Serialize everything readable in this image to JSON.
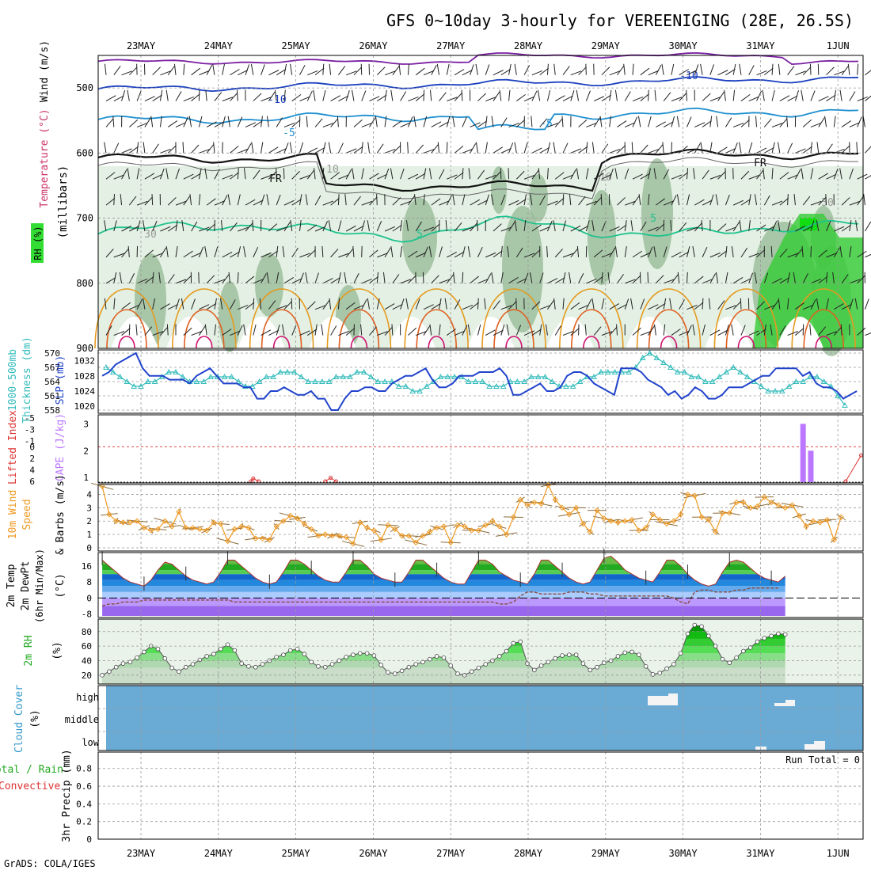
{
  "title": "GFS 0~10day 3-hourly for VEREENIGING (28E, 26.5S)",
  "footer": "GrADS: COLA/IGES",
  "dates": [
    "23MAY",
    "24MAY",
    "25MAY",
    "26MAY",
    "27MAY",
    "28MAY",
    "29MAY",
    "30MAY",
    "31MAY",
    "1JUN"
  ],
  "colors": {
    "grid": "#999999",
    "rh_light": "#e3f0e3",
    "rh_mid": "#b9d6b9",
    "rh_dark": "#8fb38f",
    "rh_green": "#33cc33",
    "thickness": "#33bbbb",
    "slp": "#2244cc",
    "cape": "#bb77ff",
    "lifted": "#dd3333",
    "wind10m": "#ee9922",
    "cloud_bg": "#6aabd6",
    "temp_green": "#22aa22",
    "temp_blue": "#2277dd",
    "temp_purple": "#aa77ee"
  },
  "chart_data": [
    {
      "id": "upper_air",
      "type": "contour",
      "left_labels": [
        "Wind (m/s)",
        "Temperature (°C)",
        "RH (%)"
      ],
      "ylabel": "(millibars)",
      "yticks": [
        500,
        600,
        700,
        800,
        900
      ],
      "ylim": [
        450,
        900
      ],
      "contour_labels": [
        "-10",
        "-10",
        "-5",
        "-5",
        "FR",
        "FR",
        "5",
        "5",
        "10",
        "10",
        "30",
        "30"
      ]
    },
    {
      "id": "thickness_slp",
      "type": "line",
      "left_labels": [
        "1000-500mb",
        "Thickness (dm)",
        "SLP (mb)"
      ],
      "yticks_left": [
        558,
        561,
        564,
        567,
        570
      ],
      "yticks_right": [
        1020,
        1024,
        1028,
        1032
      ],
      "thickness": [
        567,
        566,
        565,
        564,
        563,
        563,
        564,
        564,
        565,
        566,
        566,
        565,
        564,
        564,
        564,
        565,
        565,
        565,
        565,
        564,
        563,
        563,
        564,
        565,
        565,
        566,
        566,
        566,
        565,
        564,
        564,
        564,
        564,
        565,
        565,
        565,
        566,
        566,
        565,
        564,
        564,
        564,
        563,
        563,
        562,
        562,
        563,
        564,
        565,
        565,
        565,
        565,
        564,
        564,
        564,
        563,
        563,
        563,
        564,
        564,
        564,
        565,
        565,
        565,
        564,
        563,
        563,
        563,
        564,
        565,
        565,
        566,
        566,
        566,
        566,
        566,
        567,
        569,
        570,
        569,
        568,
        567,
        566,
        566,
        565,
        565,
        564,
        564,
        565,
        566,
        567,
        566,
        565,
        564,
        563,
        562,
        562,
        562,
        563,
        564,
        564,
        565,
        565,
        564,
        563,
        561,
        559
      ],
      "slp": [
        1028,
        1029,
        1031,
        1032,
        1033,
        1034,
        1030,
        1028,
        1028,
        1028,
        1027,
        1027,
        1027,
        1026,
        1028,
        1029,
        1030,
        1028,
        1026,
        1026,
        1026,
        1025,
        1025,
        1022,
        1022,
        1024,
        1024,
        1025,
        1024,
        1023,
        1023,
        1024,
        1022,
        1022,
        1019,
        1019,
        1022,
        1024,
        1024,
        1025,
        1025,
        1024,
        1024,
        1026,
        1027,
        1028,
        1028,
        1029,
        1030,
        1027,
        1025,
        1025,
        1026,
        1028,
        1028,
        1028,
        1029,
        1029,
        1029,
        1030,
        1028,
        1023,
        1023,
        1024,
        1025,
        1026,
        1024,
        1024,
        1025,
        1028,
        1029,
        1029,
        1028,
        1026,
        1025,
        1024,
        1023,
        1030,
        1030,
        1030,
        1029,
        1027,
        1026,
        1025,
        1023,
        1024,
        1022,
        1023,
        1025,
        1024,
        1022,
        1022,
        1023,
        1025,
        1025,
        1025,
        1026,
        1027,
        1028,
        1028,
        1030,
        1030,
        1030,
        1030,
        1028,
        1029,
        1026,
        1025,
        1025,
        1024,
        1022,
        1023,
        1024
      ],
      "ylim_thickness": [
        558,
        570
      ],
      "ylim_slp": [
        1019,
        1034
      ]
    },
    {
      "id": "cape_li",
      "type": "bar",
      "left_labels": [
        "Lifted Index",
        "CAPE (J/kg)"
      ],
      "li_yticks": [
        -5,
        -3,
        -1,
        0,
        2,
        4,
        6
      ],
      "cape_yticks": [
        1,
        2,
        3
      ],
      "cape_bars": [
        {
          "x": 8.55,
          "value": 3.0
        },
        {
          "x": 8.65,
          "value": 2.0
        }
      ],
      "lifted_index_series": [
        [
          1.42,
          6
        ],
        [
          1.45,
          5.5
        ],
        [
          1.52,
          6
        ],
        [
          2.38,
          6
        ],
        [
          2.45,
          5.4
        ],
        [
          2.52,
          6
        ],
        [
          9.1,
          6
        ],
        [
          9.3,
          1.5
        ]
      ]
    },
    {
      "id": "wind10m",
      "type": "line",
      "left_labels": [
        "10m Wind",
        "Speed",
        "& Barbs (m/s)"
      ],
      "yticks": [
        0,
        1,
        2,
        3,
        4
      ],
      "ylim": [
        0,
        4.5
      ],
      "values": [
        4.6,
        2.5,
        2.0,
        1.9,
        1.9,
        2.0,
        1.5,
        1.3,
        1.4,
        2.0,
        1.6,
        2.7,
        1.5,
        1.5,
        1.4,
        1.3,
        1.9,
        1.8,
        0.5,
        1.4,
        1.6,
        1.5,
        0.7,
        0.7,
        0.6,
        1.6,
        2.0,
        2.4,
        2.2,
        1.8,
        1.4,
        0.9,
        1.0,
        0.9,
        0.9,
        0.8,
        0.3,
        1.9,
        1.5,
        1.3,
        0.6,
        1.7,
        1.4,
        0.9,
        0.9,
        0.4,
        0.9,
        1.2,
        1.5,
        1.6,
        0.4,
        1.7,
        1.6,
        1.3,
        1.3,
        1.7,
        2.0,
        1.6,
        1.0,
        2.3,
        3.6,
        3.2,
        3.4,
        3.3,
        4.7,
        3.6,
        3.0,
        2.5,
        3.0,
        1.8,
        1.2,
        2.8,
        2.2,
        2.0,
        1.9,
        2.0,
        2.1,
        1.3,
        1.5,
        2.5,
        2.1,
        1.8,
        2.0,
        2.5,
        4.0,
        3.9,
        2.3,
        2.1,
        1.2,
        2.6,
        2.6,
        3.4,
        3.4,
        3.0,
        3.1,
        3.8,
        3.4,
        3.2,
        3.0,
        3.2,
        2.4,
        1.6,
        2.0,
        1.9,
        2.1,
        0.6,
        2.3
      ]
    },
    {
      "id": "temp_dewpt",
      "type": "area",
      "left_labels": [
        "2m Temp",
        "2m DewPt",
        "(6hr Min/Max)",
        "(°C)"
      ],
      "yticks": [
        -8,
        0,
        8,
        16
      ],
      "ylim": [
        -9,
        22
      ],
      "temp": [
        19,
        16,
        13,
        10,
        8,
        7,
        6,
        9,
        14,
        18,
        17,
        14,
        11,
        9,
        8,
        7,
        8,
        13,
        19,
        19,
        16,
        13,
        10,
        8,
        7,
        8,
        13,
        19,
        19,
        17,
        14,
        11,
        9,
        8,
        8,
        13,
        19,
        19,
        16,
        12,
        10,
        9,
        8,
        8,
        13,
        19,
        19,
        16,
        13,
        10,
        8,
        7,
        7,
        13,
        19,
        19,
        17,
        13,
        11,
        9,
        8,
        7,
        12,
        19,
        19,
        16,
        13,
        10,
        8,
        7,
        8,
        14,
        20,
        21,
        18,
        14,
        12,
        10,
        9,
        8,
        13,
        19,
        19,
        16,
        12,
        9,
        7,
        6,
        7,
        13,
        18,
        19,
        18,
        15,
        12,
        10,
        9,
        8,
        11
      ],
      "dewpt": [
        -4,
        -3,
        -3,
        -2,
        -2,
        -2,
        -1,
        -1,
        -1,
        -1,
        -1,
        -1,
        -1,
        -1,
        -1,
        -1,
        -1,
        -1,
        -1,
        -2,
        -2,
        -2,
        -2,
        -2,
        -2,
        -2,
        -2,
        -2,
        -2,
        -2,
        -2,
        -2,
        -2,
        -2,
        -2,
        -2,
        -2,
        -2,
        -2,
        -2,
        -2,
        -2,
        -2,
        -2,
        -2,
        -2,
        -2,
        -2,
        -2,
        -2,
        -2,
        -2,
        -2,
        -2,
        -2,
        -2,
        -2,
        -3,
        -3,
        -2,
        1,
        3,
        3,
        2,
        2,
        2,
        2,
        3,
        3,
        3,
        2,
        2,
        1,
        1,
        1,
        1,
        1,
        1,
        1,
        1,
        1,
        1,
        0,
        -2,
        -3,
        3,
        4,
        4,
        3,
        3,
        3,
        4,
        4,
        5,
        5,
        5,
        5,
        5
      ]
    },
    {
      "id": "rh2m",
      "type": "area",
      "left_labels": [
        "2m RH",
        "(%)"
      ],
      "yticks": [
        20,
        40,
        60,
        80
      ],
      "ylim": [
        10,
        95
      ],
      "values": [
        20,
        25,
        31,
        36,
        38,
        44,
        52,
        60,
        56,
        43,
        30,
        25,
        31,
        35,
        41,
        46,
        49,
        56,
        62,
        54,
        36,
        32,
        31,
        35,
        40,
        45,
        48,
        54,
        56,
        49,
        38,
        32,
        31,
        35,
        40,
        45,
        48,
        50,
        50,
        47,
        34,
        24,
        22,
        26,
        31,
        35,
        38,
        42,
        46,
        44,
        33,
        22,
        20,
        25,
        30,
        35,
        40,
        46,
        53,
        64,
        66,
        36,
        27,
        33,
        38,
        43,
        47,
        48,
        48,
        36,
        27,
        31,
        37,
        40,
        46,
        51,
        52,
        48,
        32,
        21,
        23,
        29,
        35,
        50,
        77,
        89,
        87,
        74,
        60,
        42,
        37,
        44,
        53,
        58,
        66,
        71,
        74,
        77,
        76
      ]
    },
    {
      "id": "cloud_cover",
      "type": "heatmap",
      "left_labels": [
        "Cloud Cover",
        "(%)"
      ],
      "levels": [
        "high",
        "middle",
        "low"
      ]
    },
    {
      "id": "precip",
      "type": "bar",
      "left_labels": [
        "Total / Rain",
        "Convective",
        "3hr Precip (mm)"
      ],
      "yticks": [
        0,
        0.2,
        0.4,
        0.6,
        0.8
      ],
      "ylim": [
        0,
        0.95
      ],
      "values": [],
      "run_total": "Run Total = 0"
    }
  ]
}
